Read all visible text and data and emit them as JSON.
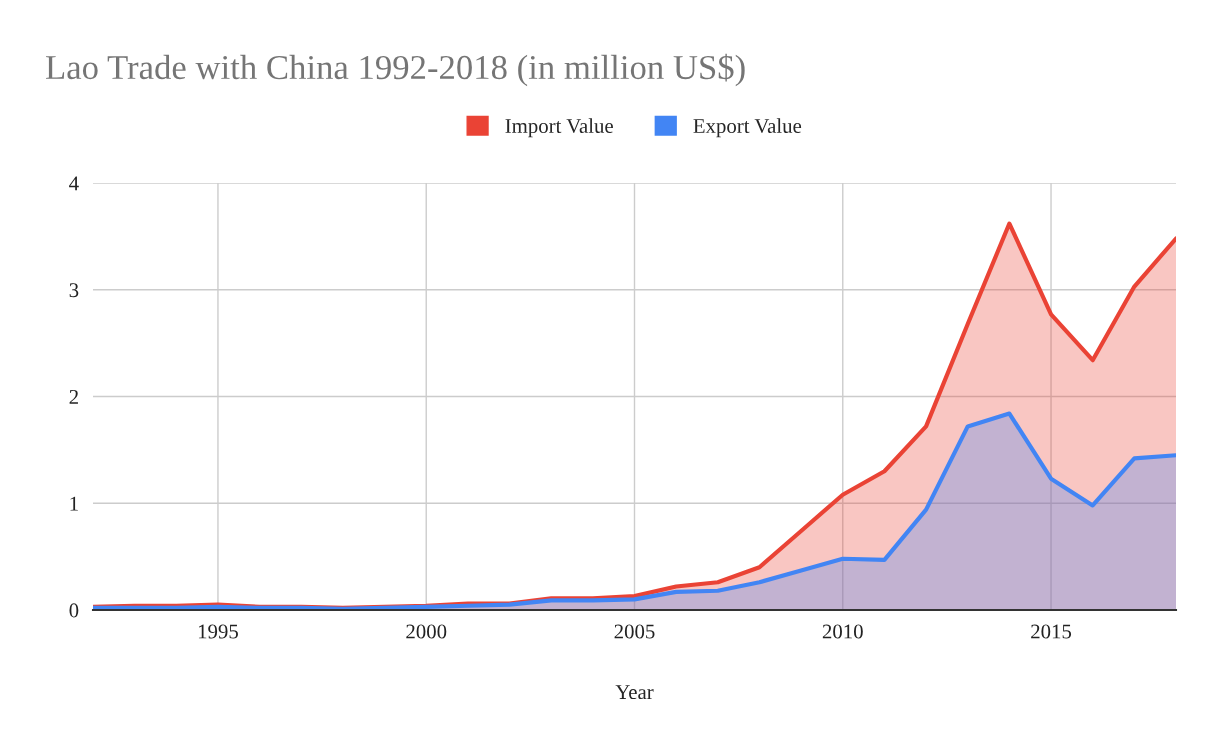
{
  "chart_data": {
    "type": "area",
    "title": "Lao Trade with China 1992-2018 (in million US$)",
    "xlabel": "Year",
    "x": [
      1992,
      1993,
      1994,
      1995,
      1996,
      1997,
      1998,
      1999,
      2000,
      2001,
      2002,
      2003,
      2004,
      2005,
      2006,
      2007,
      2008,
      2009,
      2010,
      2011,
      2012,
      2013,
      2014,
      2015,
      2016,
      2017,
      2018
    ],
    "series": [
      {
        "name": "Import Value",
        "color": "#ea4335",
        "values": [
          0.03,
          0.04,
          0.04,
          0.05,
          0.03,
          0.03,
          0.02,
          0.03,
          0.04,
          0.06,
          0.06,
          0.11,
          0.11,
          0.13,
          0.22,
          0.26,
          0.4,
          0.74,
          1.08,
          1.3,
          1.72,
          2.68,
          3.62,
          2.77,
          2.34,
          3.03,
          3.48
        ]
      },
      {
        "name": "Export Value",
        "color": "#4285f4",
        "values": [
          0.02,
          0.02,
          0.02,
          0.03,
          0.02,
          0.02,
          0.01,
          0.02,
          0.03,
          0.04,
          0.05,
          0.09,
          0.09,
          0.1,
          0.17,
          0.18,
          0.26,
          0.37,
          0.48,
          0.47,
          0.94,
          1.72,
          1.84,
          1.23,
          0.98,
          1.42,
          1.45
        ]
      }
    ],
    "xlim": [
      1992,
      2018
    ],
    "xticks": [
      1995,
      2000,
      2005,
      2010,
      2015
    ],
    "ylim": [
      0,
      4
    ],
    "yticks": [
      0,
      1,
      2,
      3,
      4
    ],
    "grid": true,
    "legend": "top"
  }
}
